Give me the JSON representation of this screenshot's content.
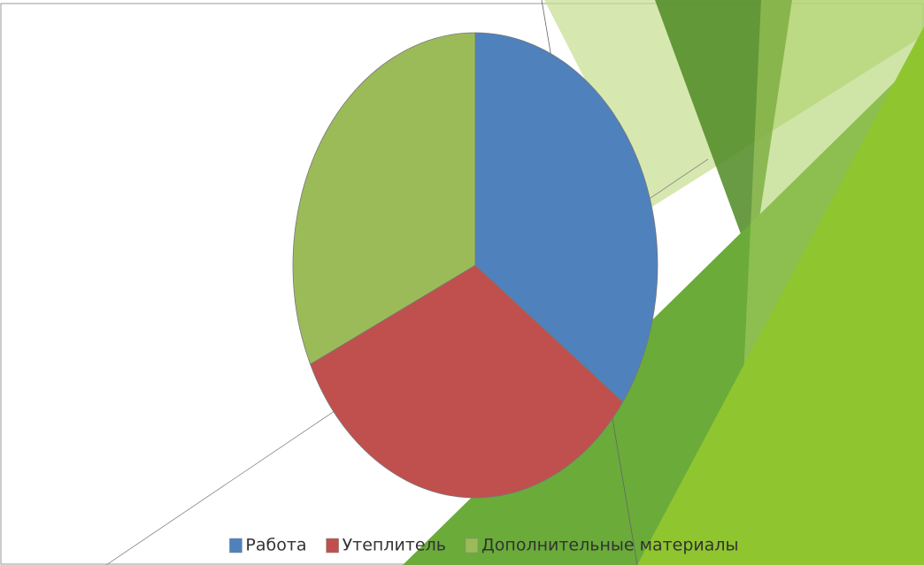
{
  "chart_data": {
    "type": "pie",
    "categories": [
      "Работа",
      "Утеплитель",
      "Дополнительные материалы"
    ],
    "values": [
      35,
      33,
      32
    ],
    "colors": [
      "#4f81bd",
      "#c0504d",
      "#9bbb59"
    ],
    "legend": "bottom"
  }
}
